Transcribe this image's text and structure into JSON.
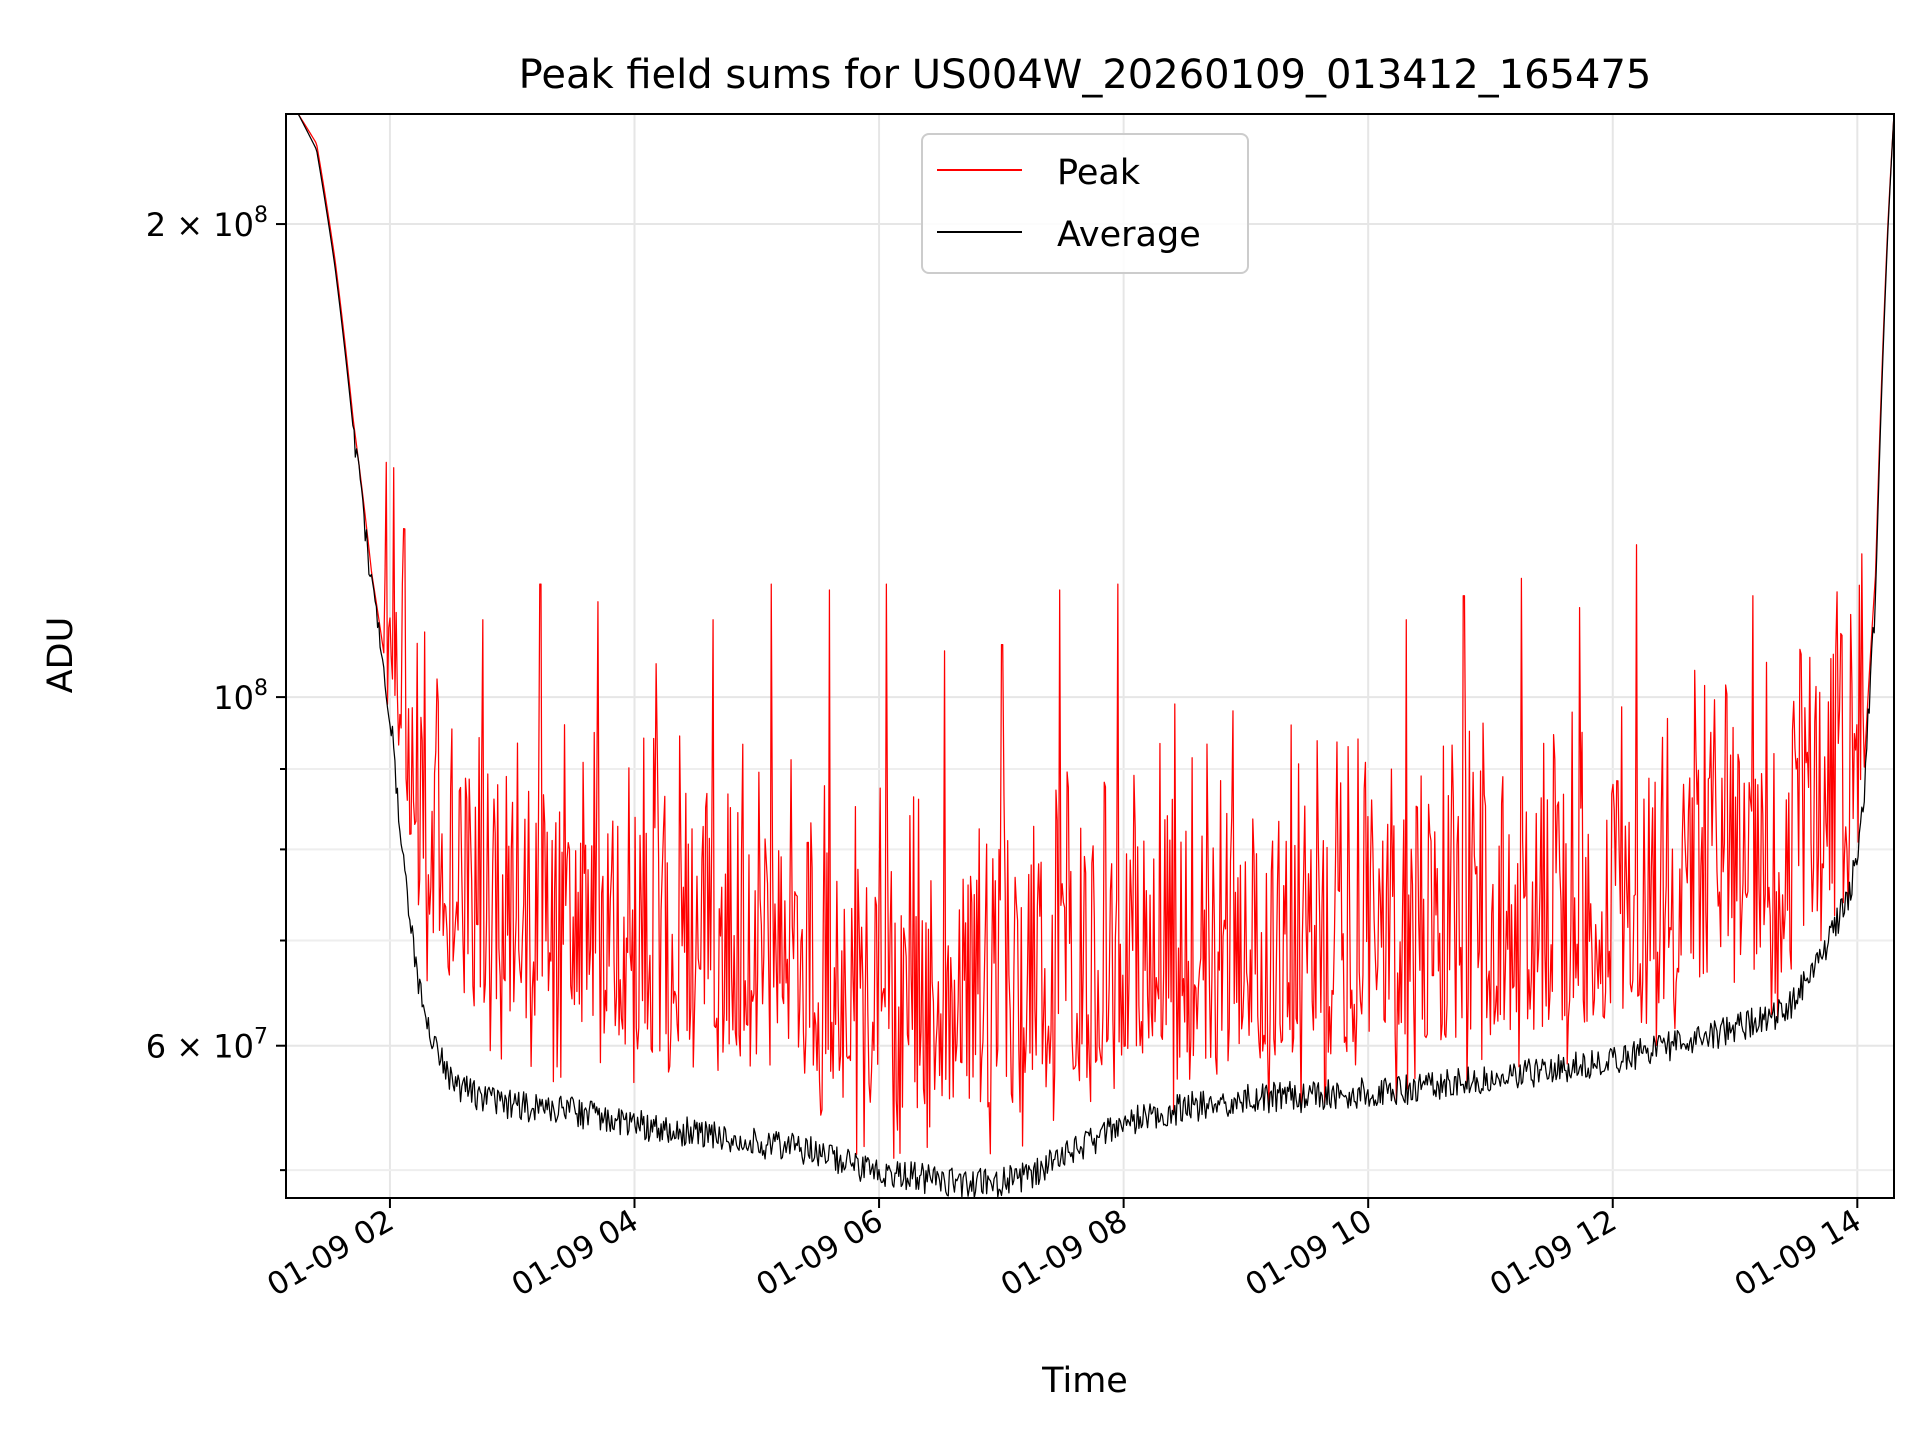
{
  "chart_data": {
    "type": "line",
    "title": "Peak field sums for US004W_20260109_013412_165475",
    "xlabel": "Time",
    "ylabel": "ADU",
    "xscale": "time",
    "yscale": "log",
    "xlim_hours": [
      1.15,
      14.3
    ],
    "ylim": [
      48000000,
      235000000
    ],
    "grid": true,
    "legend_position": "top-center",
    "x_ticks": [
      {
        "hour": 2,
        "label": "01-09 02"
      },
      {
        "hour": 4,
        "label": "01-09 04"
      },
      {
        "hour": 6,
        "label": "01-09 06"
      },
      {
        "hour": 8,
        "label": "01-09 08"
      },
      {
        "hour": 10,
        "label": "01-09 10"
      },
      {
        "hour": 12,
        "label": "01-09 12"
      },
      {
        "hour": 14,
        "label": "01-09 14"
      }
    ],
    "y_major_ticks": [
      {
        "value": 60000000,
        "mantissa": "6",
        "exponent": "7"
      },
      {
        "value": 100000000,
        "mantissa": "",
        "exponent": "8"
      },
      {
        "value": 200000000,
        "mantissa": "2",
        "exponent": "8"
      }
    ],
    "y_minor_ticks": [
      50000000,
      70000000,
      80000000,
      90000000
    ],
    "series": [
      {
        "name": "Peak",
        "color": "#ff0000",
        "x_hours": [
          1.15,
          1.25,
          1.4,
          1.55,
          1.7,
          1.85,
          2.0,
          2.1,
          2.2,
          2.35,
          2.5,
          2.75,
          3.0,
          3.5,
          4.0,
          4.5,
          5.0,
          5.4,
          5.7,
          6.0,
          6.3,
          6.6,
          6.9,
          7.2,
          7.5,
          7.8,
          8.0,
          8.5,
          9.0,
          9.5,
          10.0,
          10.5,
          11.0,
          11.5,
          12.0,
          12.5,
          13.0,
          13.4,
          13.6,
          13.8,
          13.95,
          14.05,
          14.15,
          14.25,
          14.3
        ],
        "baseline": [
          235000000,
          235000000,
          225000000,
          190000000,
          150000000,
          120000000,
          100000000,
          82000000,
          72000000,
          66000000,
          63000000,
          61000000,
          60000000,
          59000000,
          58000000,
          57500000,
          56500000,
          55500000,
          54000000,
          53500000,
          53000000,
          53000000,
          53000000,
          53500000,
          54500000,
          56000000,
          56500000,
          57000000,
          57300000,
          57500000,
          57800000,
          58300000,
          59000000,
          59800000,
          60500000,
          62000000,
          63500000,
          65000000,
          69000000,
          74000000,
          78000000,
          88000000,
          120000000,
          200000000,
          235000000
        ],
        "spike_heights": [
          110000000,
          112000000,
          118000000,
          115000000,
          105000000,
          112000000,
          118000000,
          117000000,
          118000000,
          107000000,
          108000000,
          117000000,
          118000000,
          99000000,
          98000000,
          96000000,
          93000000,
          112000000,
          116000000,
          119000000,
          114000000,
          125000000,
          104000000,
          116000000,
          106000000
        ]
      },
      {
        "name": "Average",
        "color": "#000000",
        "x_hours": [
          1.15,
          1.25,
          1.4,
          1.55,
          1.7,
          1.85,
          2.0,
          2.1,
          2.2,
          2.35,
          2.5,
          2.75,
          3.0,
          3.5,
          4.0,
          4.5,
          5.0,
          5.4,
          5.7,
          6.0,
          6.3,
          6.6,
          6.9,
          7.2,
          7.5,
          7.8,
          8.0,
          8.5,
          9.0,
          9.5,
          10.0,
          10.5,
          11.0,
          11.5,
          12.0,
          12.5,
          13.0,
          13.4,
          13.6,
          13.8,
          13.95,
          14.05,
          14.15,
          14.25,
          14.3
        ],
        "values": [
          235000000,
          235000000,
          223000000,
          188000000,
          148000000,
          118000000,
          98000000,
          80000000,
          68000000,
          60000000,
          57000000,
          55500000,
          55000000,
          54500000,
          53500000,
          52800000,
          52000000,
          51500000,
          50500000,
          50000000,
          49500000,
          49200000,
          49000000,
          49500000,
          51000000,
          52500000,
          53500000,
          54800000,
          55500000,
          55800000,
          56000000,
          56500000,
          57200000,
          58000000,
          58800000,
          60000000,
          61500000,
          63000000,
          66000000,
          71000000,
          75500000,
          85000000,
          116000000,
          198000000,
          235000000
        ]
      }
    ]
  }
}
